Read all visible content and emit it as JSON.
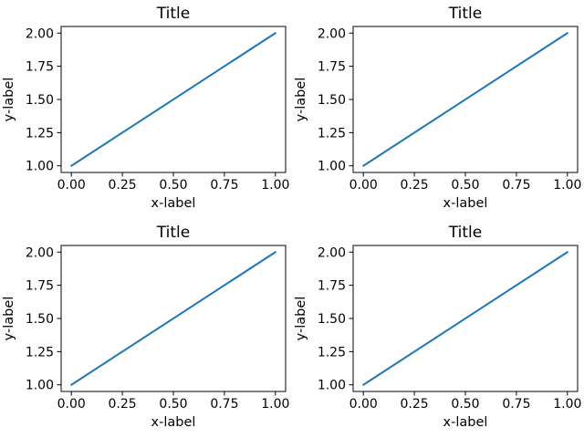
{
  "figure": {
    "background": "#ffffff",
    "rows": 2,
    "cols": 2
  },
  "colors": {
    "axis": "#000000",
    "text": "#000000",
    "line": "#1f77b4",
    "background": "#ffffff"
  },
  "chart_data": [
    {
      "type": "line",
      "title": "Title",
      "xlabel": "x-label",
      "ylabel": "y-label",
      "x": [
        0,
        1
      ],
      "y": [
        1,
        2
      ],
      "xlim": [
        -0.05,
        1.05
      ],
      "ylim": [
        0.95,
        2.05
      ],
      "xticks": [
        0.0,
        0.25,
        0.5,
        0.75,
        1.0
      ],
      "xtick_labels": [
        "0.00",
        "0.25",
        "0.50",
        "0.75",
        "1.00"
      ],
      "yticks": [
        1.0,
        1.25,
        1.5,
        1.75,
        2.0
      ],
      "ytick_labels": [
        "1.00",
        "1.25",
        "1.50",
        "1.75",
        "2.00"
      ],
      "line_color": "#1f77b4",
      "grid": false,
      "legend": null
    },
    {
      "type": "line",
      "title": "Title",
      "xlabel": "x-label",
      "ylabel": "y-label",
      "x": [
        0,
        1
      ],
      "y": [
        1,
        2
      ],
      "xlim": [
        -0.05,
        1.05
      ],
      "ylim": [
        0.95,
        2.05
      ],
      "xticks": [
        0.0,
        0.25,
        0.5,
        0.75,
        1.0
      ],
      "xtick_labels": [
        "0.00",
        "0.25",
        "0.50",
        "0.75",
        "1.00"
      ],
      "yticks": [
        1.0,
        1.25,
        1.5,
        1.75,
        2.0
      ],
      "ytick_labels": [
        "1.00",
        "1.25",
        "1.50",
        "1.75",
        "2.00"
      ],
      "line_color": "#1f77b4",
      "grid": false,
      "legend": null
    },
    {
      "type": "line",
      "title": "Title",
      "xlabel": "x-label",
      "ylabel": "y-label",
      "x": [
        0,
        1
      ],
      "y": [
        1,
        2
      ],
      "xlim": [
        -0.05,
        1.05
      ],
      "ylim": [
        0.95,
        2.05
      ],
      "xticks": [
        0.0,
        0.25,
        0.5,
        0.75,
        1.0
      ],
      "xtick_labels": [
        "0.00",
        "0.25",
        "0.50",
        "0.75",
        "1.00"
      ],
      "yticks": [
        1.0,
        1.25,
        1.5,
        1.75,
        2.0
      ],
      "ytick_labels": [
        "1.00",
        "1.25",
        "1.50",
        "1.75",
        "2.00"
      ],
      "line_color": "#1f77b4",
      "grid": false,
      "legend": null
    },
    {
      "type": "line",
      "title": "Title",
      "xlabel": "x-label",
      "ylabel": "y-label",
      "x": [
        0,
        1
      ],
      "y": [
        1,
        2
      ],
      "xlim": [
        -0.05,
        1.05
      ],
      "ylim": [
        0.95,
        2.05
      ],
      "xticks": [
        0.0,
        0.25,
        0.5,
        0.75,
        1.0
      ],
      "xtick_labels": [
        "0.00",
        "0.25",
        "0.50",
        "0.75",
        "1.00"
      ],
      "yticks": [
        1.0,
        1.25,
        1.5,
        1.75,
        2.0
      ],
      "ytick_labels": [
        "1.00",
        "1.25",
        "1.50",
        "1.75",
        "2.00"
      ],
      "line_color": "#1f77b4",
      "grid": false,
      "legend": null
    }
  ]
}
